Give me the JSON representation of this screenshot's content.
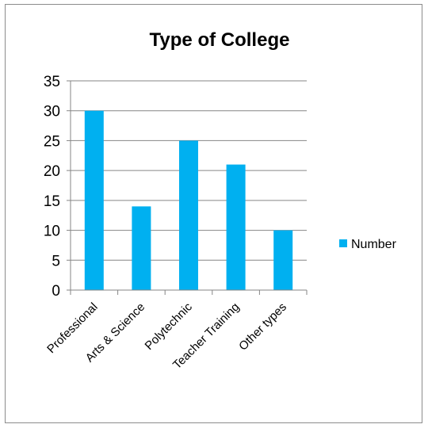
{
  "chart_data": {
    "type": "bar",
    "title": "Type of College",
    "categories": [
      "Professional",
      "Arts & Science",
      "Polytechnic",
      "Teacher Training",
      "Other types"
    ],
    "series": [
      {
        "name": "Number",
        "values": [
          30,
          14,
          25,
          21,
          10
        ],
        "color": "#00b0f0"
      }
    ],
    "xlabel": "",
    "ylabel": "",
    "ylim": [
      0,
      35
    ],
    "yticks": [
      0,
      5,
      10,
      15,
      20,
      25,
      30,
      35
    ],
    "grid": true,
    "legend": "right"
  },
  "colors": {
    "gridline": "#868686",
    "frame": "#8c8c8c"
  }
}
